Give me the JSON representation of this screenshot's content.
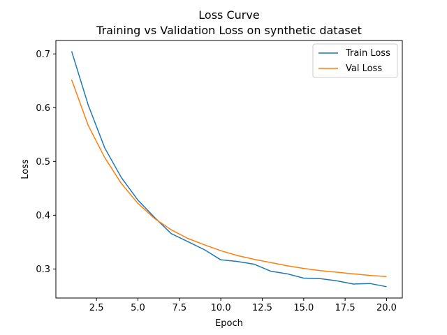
{
  "chart_data": {
    "type": "line",
    "title": "Loss Curve",
    "subtitle": "Training vs Validation Loss on synthetic dataset",
    "xlabel": "Epoch",
    "ylabel": "Loss",
    "xlim": [
      0.05,
      20.95
    ],
    "ylim": [
      0.246,
      0.725
    ],
    "xticks": [
      "2.5",
      "5.0",
      "7.5",
      "10.0",
      "12.5",
      "15.0",
      "17.5",
      "20.0"
    ],
    "yticks": [
      "0.3",
      "0.4",
      "0.5",
      "0.6",
      "0.7"
    ],
    "grid": false,
    "legend_position": "top-right",
    "x": [
      1,
      2,
      3,
      4,
      5,
      6,
      7,
      8,
      9,
      10,
      11,
      12,
      13,
      14,
      15,
      16,
      17,
      18,
      19,
      20
    ],
    "series": [
      {
        "name": "Train Loss",
        "color": "#1f77b4",
        "values": [
          0.705,
          0.605,
          0.525,
          0.47,
          0.428,
          0.396,
          0.366,
          0.351,
          0.336,
          0.317,
          0.314,
          0.309,
          0.296,
          0.291,
          0.283,
          0.282,
          0.278,
          0.272,
          0.273,
          0.267
        ]
      },
      {
        "name": "Val Loss",
        "color": "#ff7f0e",
        "values": [
          0.652,
          0.567,
          0.507,
          0.459,
          0.422,
          0.394,
          0.373,
          0.357,
          0.345,
          0.334,
          0.325,
          0.318,
          0.312,
          0.306,
          0.301,
          0.297,
          0.294,
          0.291,
          0.288,
          0.286
        ]
      }
    ]
  }
}
